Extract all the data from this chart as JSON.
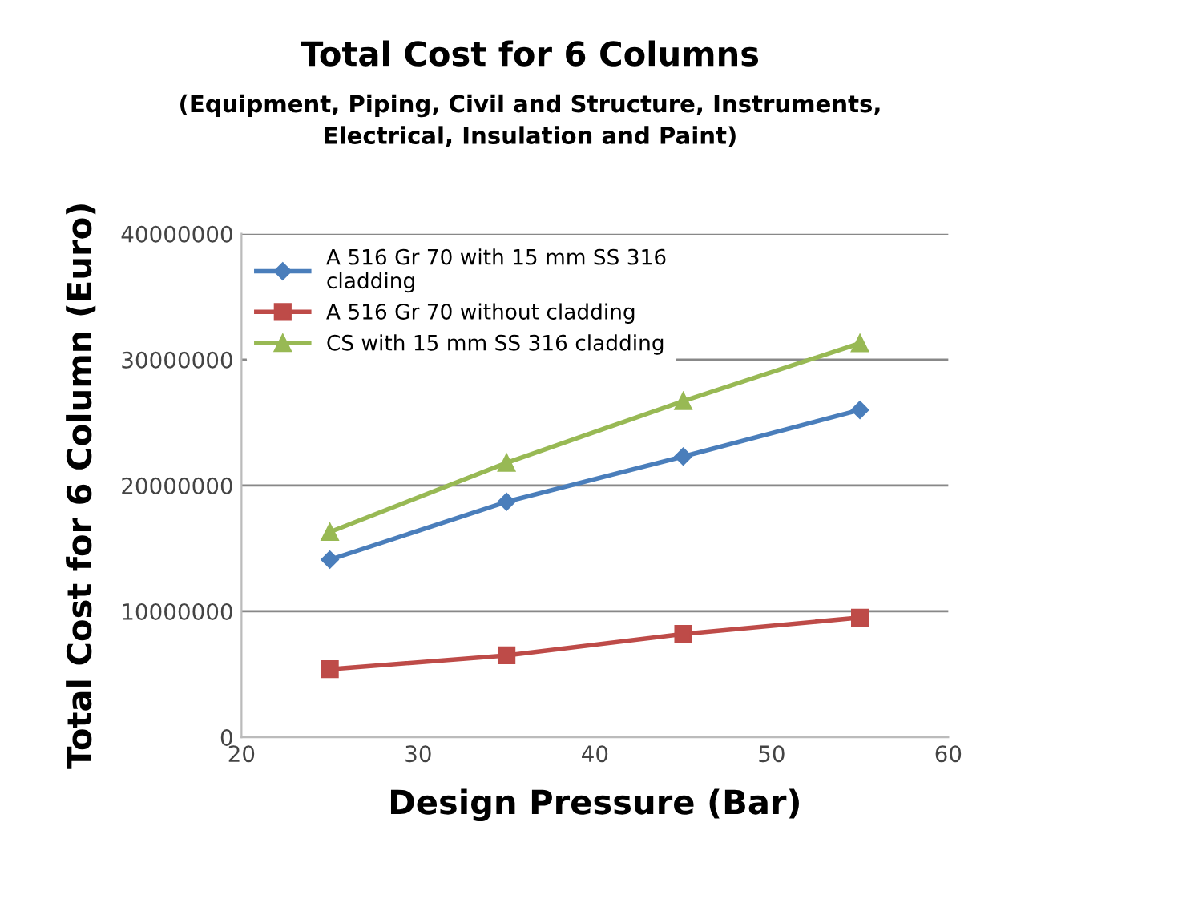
{
  "chart_data": {
    "type": "line",
    "title": "Total Cost for 6 Columns",
    "subtitle": "(Equipment, Piping, Civil and Structure, Instruments,\nElectrical, Insulation and Paint)",
    "xlabel": "Design Pressure (Bar)",
    "ylabel": "Total Cost for 6 Column (Euro)",
    "x": [
      25,
      35,
      45,
      55
    ],
    "series": [
      {
        "name": "A 516 Gr 70 with 15 mm SS 316\ncladding",
        "color": "#4a7ebb",
        "marker": "diamond",
        "values": [
          14100000,
          18700000,
          22300000,
          26000000
        ]
      },
      {
        "name": "A 516 Gr 70 without cladding",
        "color": "#be4b48",
        "marker": "square",
        "values": [
          5400000,
          6500000,
          8200000,
          9500000
        ]
      },
      {
        "name": "CS with 15 mm SS 316 cladding",
        "color": "#98b954",
        "marker": "triangle",
        "values": [
          16300000,
          21800000,
          26700000,
          31300000
        ]
      }
    ],
    "xlim": [
      20,
      60
    ],
    "xticks": [
      20,
      30,
      40,
      50,
      60
    ],
    "ylim": [
      0,
      40000000
    ],
    "yticks": [
      0,
      10000000,
      20000000,
      30000000,
      40000000
    ],
    "grid": "y",
    "legend": "top left",
    "line_style": "solid"
  }
}
